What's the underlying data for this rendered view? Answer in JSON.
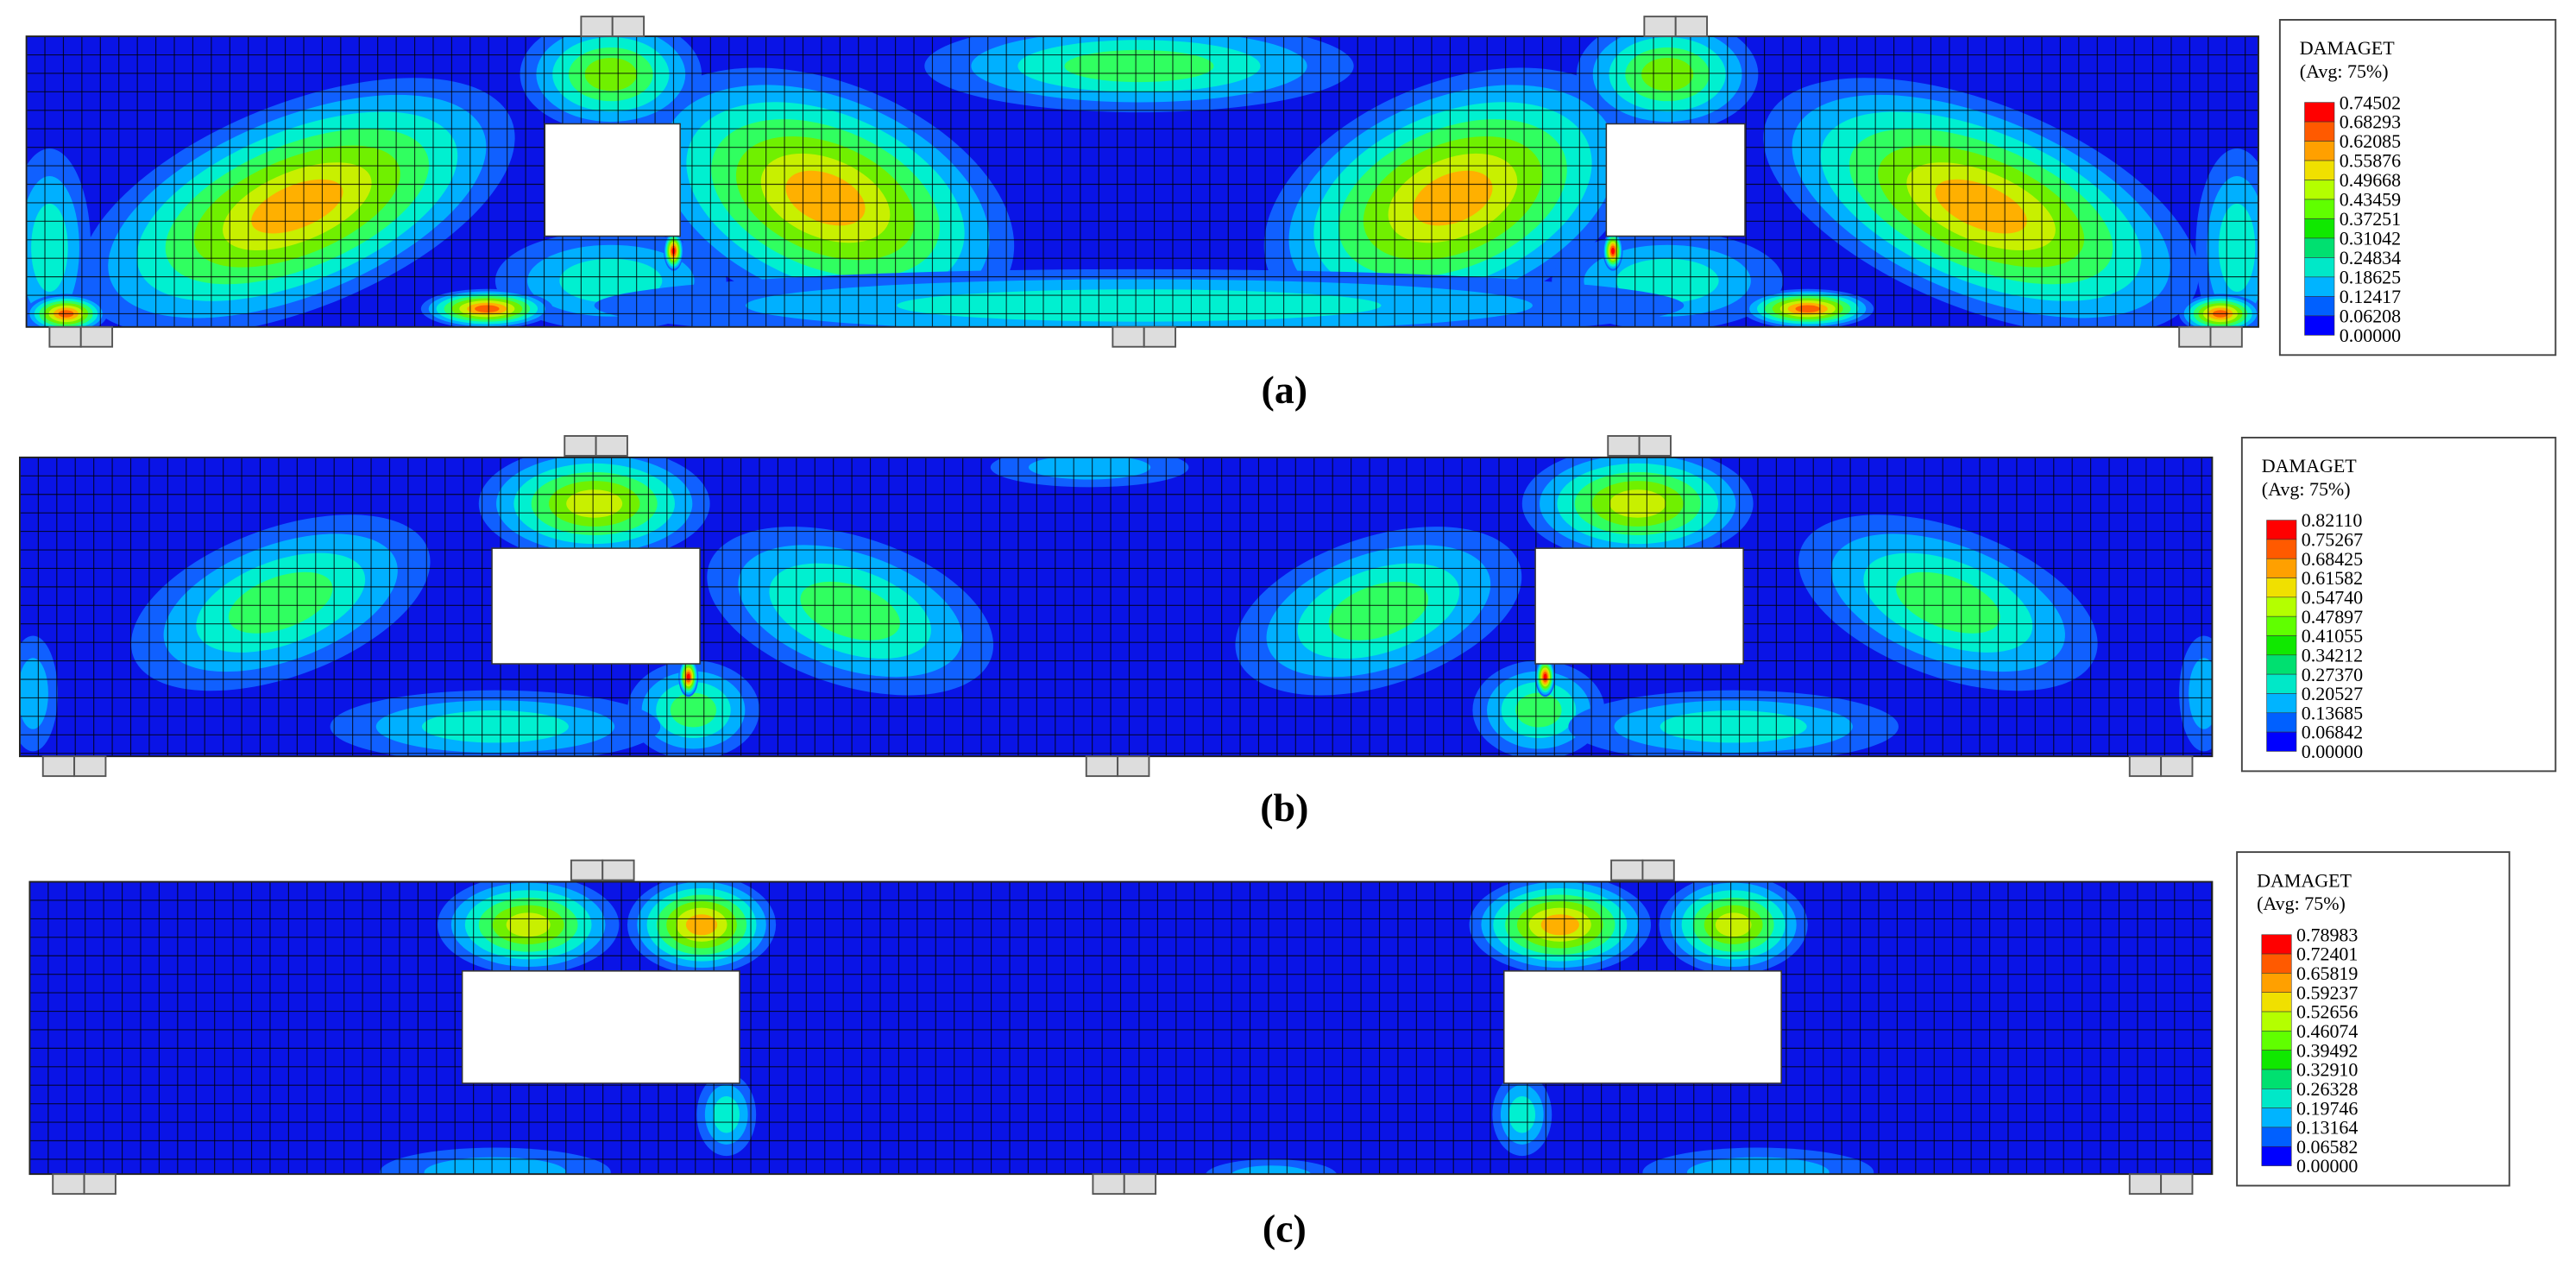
{
  "panels": [
    {
      "caption": "(a)",
      "legend": {
        "title": "DAMAGET",
        "subtitle": "(Avg: 75%)",
        "values": [
          "0.74502",
          "0.68293",
          "0.62085",
          "0.55876",
          "0.49668",
          "0.43459",
          "0.37251",
          "0.31042",
          "0.24834",
          "0.18625",
          "0.12417",
          "0.06208",
          "0.00000"
        ]
      }
    },
    {
      "caption": "(b)",
      "legend": {
        "title": "DAMAGET",
        "subtitle": "(Avg: 75%)",
        "values": [
          "0.82110",
          "0.75267",
          "0.68425",
          "0.61582",
          "0.54740",
          "0.47897",
          "0.41055",
          "0.34212",
          "0.27370",
          "0.20527",
          "0.13685",
          "0.06842",
          "0.00000"
        ]
      }
    },
    {
      "caption": "(c)",
      "legend": {
        "title": "DAMAGET",
        "subtitle": "(Avg: 75%)",
        "values": [
          "0.78983",
          "0.72401",
          "0.65819",
          "0.59237",
          "0.52656",
          "0.46074",
          "0.39492",
          "0.32910",
          "0.26328",
          "0.19746",
          "0.13164",
          "0.06582",
          "0.00000"
        ]
      }
    }
  ]
}
